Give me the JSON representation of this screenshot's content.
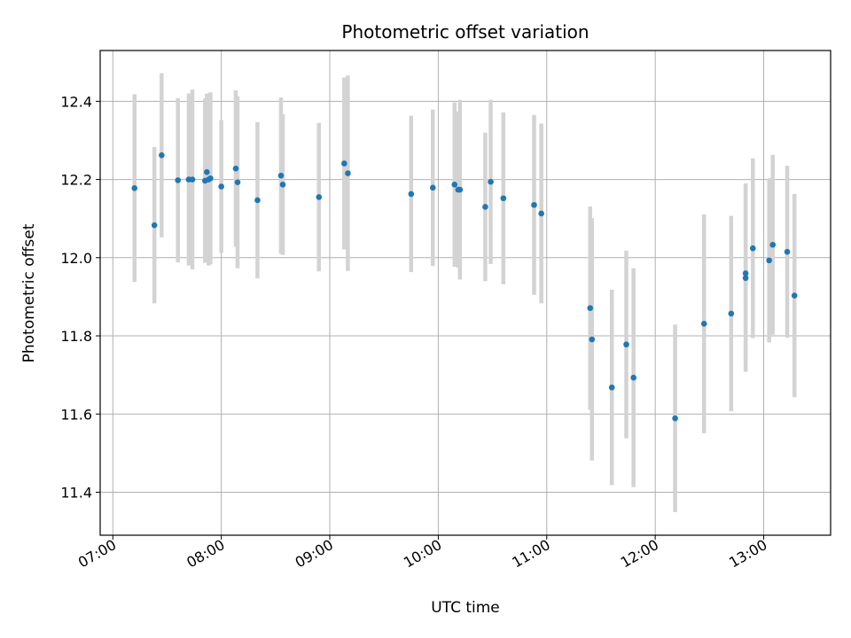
{
  "chart_data": {
    "type": "scatter",
    "title": "Photometric offset variation",
    "xlabel": "UTC time",
    "ylabel": "Photometric offset",
    "grid": true,
    "legend": "none",
    "xlim": [
      "06:53",
      "13:37"
    ],
    "ylim": [
      11.29,
      12.53
    ],
    "x_ticks": [
      "07:00",
      "08:00",
      "09:00",
      "10:00",
      "11:00",
      "12:00",
      "13:00"
    ],
    "y_ticks": [
      "11.4",
      "11.6",
      "11.8",
      "12.0",
      "12.2",
      "12.4"
    ],
    "colors": {
      "points": "#1f77b4",
      "errorbars": "#d3d3d3",
      "grid": "#b0b0b0"
    },
    "series": [
      {
        "x": [
          "07:12",
          "07:23",
          "07:27",
          "07:36",
          "07:42",
          "07:44",
          "07:51",
          "07:52",
          "07:53",
          "07:54",
          "08:00",
          "08:08",
          "08:09",
          "08:20",
          "08:33",
          "08:34",
          "08:54",
          "09:08",
          "09:10",
          "09:45",
          "09:57",
          "10:09",
          "10:11",
          "10:12",
          "10:26",
          "10:29",
          "10:36",
          "10:53",
          "10:57",
          "11:24",
          "11:25",
          "11:36",
          "11:44",
          "11:48",
          "12:11",
          "12:27",
          "12:42",
          "12:50",
          "12:50",
          "12:54",
          "13:03",
          "13:05",
          "13:13",
          "13:17"
        ],
        "y": [
          12.178,
          12.083,
          12.262,
          12.198,
          12.2,
          12.2,
          12.197,
          12.219,
          12.2,
          12.203,
          12.182,
          12.228,
          12.193,
          12.147,
          12.21,
          12.187,
          12.155,
          12.241,
          12.216,
          12.163,
          12.179,
          12.187,
          12.174,
          12.174,
          12.13,
          12.194,
          12.152,
          12.135,
          12.113,
          11.871,
          11.791,
          11.668,
          11.778,
          11.693,
          11.589,
          11.831,
          11.857,
          11.948,
          11.96,
          12.024,
          11.993,
          12.033,
          12.015,
          11.903
        ],
        "err": [
          0.24,
          0.2,
          0.21,
          0.21,
          0.22,
          0.23,
          0.21,
          0.2,
          0.22,
          0.22,
          0.17,
          0.2,
          0.22,
          0.2,
          0.2,
          0.18,
          0.19,
          0.22,
          0.25,
          0.2,
          0.2,
          0.21,
          0.2,
          0.23,
          0.19,
          0.21,
          0.22,
          0.23,
          0.23,
          0.26,
          0.31,
          0.25,
          0.24,
          0.28,
          0.24,
          0.28,
          0.25,
          0.24,
          0.23,
          0.23,
          0.21,
          0.23,
          0.22,
          0.26
        ]
      }
    ]
  }
}
